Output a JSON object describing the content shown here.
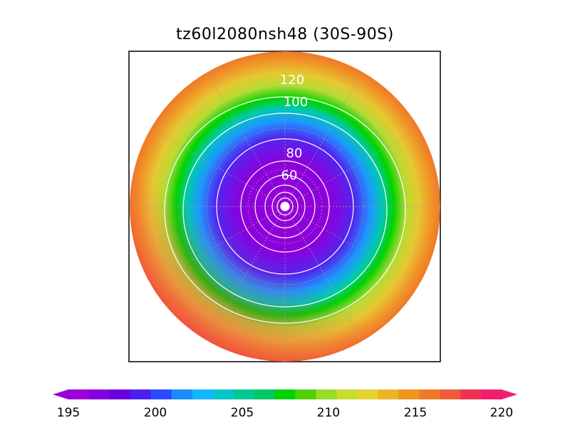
{
  "title": "tz60l2080nsh48 (30S-90S)",
  "map": {
    "projection": "polar-stereographic",
    "latitude_range": "30S-90S",
    "grid_style": "dotted-gray"
  },
  "contour_labels": [
    "120",
    "100",
    "80",
    "60"
  ],
  "colorbar": {
    "tick_labels": [
      "195",
      "200",
      "205",
      "210",
      "215",
      "220"
    ],
    "colors": [
      "#9c00d8",
      "#8400dc",
      "#6a00e0",
      "#4a20f0",
      "#2c4cff",
      "#1a8cff",
      "#14b4ff",
      "#00c8c8",
      "#00c896",
      "#00c864",
      "#00d200",
      "#50d200",
      "#96dc28",
      "#c8dc32",
      "#e6d232",
      "#ebb428",
      "#f0961e",
      "#f07828",
      "#f05a3c",
      "#f03250",
      "#f01e6e"
    ],
    "extend": "both"
  }
}
